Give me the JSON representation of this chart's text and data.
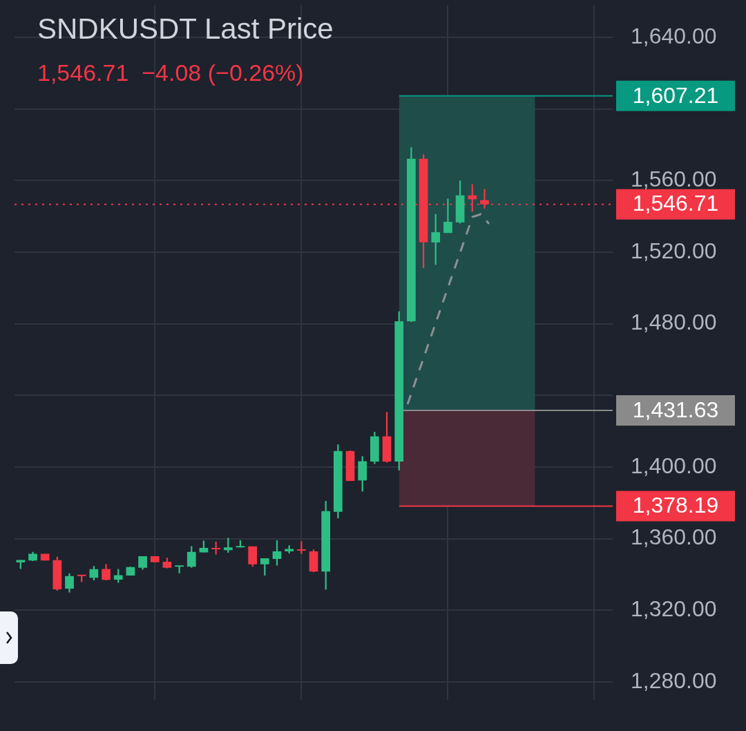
{
  "chart_data": {
    "type": "candlestick",
    "title": "SNDKUSDT Last Price",
    "subtitle": "1,546.71  −4.08 (−0.26%)",
    "categories": [
      null,
      null,
      null,
      null,
      null,
      null,
      null,
      null,
      null,
      null,
      null,
      null,
      null,
      null,
      null,
      null,
      null,
      null,
      null,
      null,
      null,
      null,
      null,
      null,
      null,
      null,
      null,
      null,
      null,
      null,
      null,
      null,
      null,
      null,
      null,
      null,
      null,
      null,
      null,
      null,
      null,
      null,
      null,
      null,
      null,
      null,
      null,
      null,
      null
    ],
    "ohlc": [
      [
        1346.7,
        1348.1,
        1343,
        1348.1
      ],
      [
        1347.8,
        1352.6,
        1347.5,
        1351.5
      ],
      [
        1351.5,
        1351.5,
        1347.8,
        1347.8
      ],
      [
        1348,
        1349.9,
        1330.9,
        1331.7
      ],
      [
        1332,
        1340.6,
        1329.9,
        1339.1
      ],
      [
        1339.8,
        1339.8,
        1335.7,
        1339.1
      ],
      [
        1338.1,
        1344.7,
        1336.7,
        1342.9
      ],
      [
        1343,
        1345.7,
        1336.7,
        1337
      ],
      [
        1337.1,
        1343,
        1335.3,
        1339.6
      ],
      [
        1339.4,
        1344.3,
        1339.4,
        1344.1
      ],
      [
        1343.7,
        1350.2,
        1342.7,
        1350.2
      ],
      [
        1350.2,
        1350.2,
        1346.8,
        1346.8
      ],
      [
        1347.1,
        1349.3,
        1343.4,
        1343.7
      ],
      [
        1344.3,
        1344.9,
        1340.6,
        1344.9
      ],
      [
        1344.3,
        1355.8,
        1343.7,
        1352.6
      ],
      [
        1352.3,
        1358.9,
        1352.3,
        1354.8
      ],
      [
        1354.8,
        1358.3,
        1351.1,
        1354
      ],
      [
        1353.6,
        1360.4,
        1352.1,
        1355.1
      ],
      [
        1355.1,
        1359.1,
        1355.1,
        1355.8
      ],
      [
        1355.7,
        1355.7,
        1344.3,
        1345.6
      ],
      [
        1345.6,
        1349,
        1339.4,
        1349
      ],
      [
        1348.6,
        1359.1,
        1345,
        1352.9
      ],
      [
        1352.9,
        1356.3,
        1351.7,
        1354.2
      ],
      [
        1354,
        1358.5,
        1351.4,
        1353.3
      ],
      [
        1352.9,
        1353.9,
        1341.3,
        1341.6
      ],
      [
        1341.6,
        1381,
        1331.6,
        1375.4
      ],
      [
        1375,
        1412.6,
        1371.3,
        1408.9
      ],
      [
        1408.9,
        1409.2,
        1392.2,
        1392.2
      ],
      [
        1392.5,
        1406,
        1386.3,
        1403.2
      ],
      [
        1403,
        1419.6,
        1401.7,
        1417.1
      ],
      [
        1417.1,
        1430.7,
        1402.4,
        1403
      ],
      [
        1403,
        1486.9,
        1398.1,
        1481.4
      ],
      [
        1481.4,
        1578.5,
        1481,
        1572.1
      ],
      [
        1572.1,
        1574.6,
        1511,
        1525.4
      ],
      [
        1525.4,
        1541.2,
        1512.9,
        1531.1
      ],
      [
        1530.7,
        1549.9,
        1530.7,
        1536.9
      ],
      [
        1536.6,
        1560,
        1536,
        1551.7
      ],
      [
        1551.7,
        1557.9,
        1542.5,
        1549.5
      ],
      [
        1549,
        1555.2,
        1544.3,
        1546.71
      ],
      null,
      null,
      null,
      null,
      null,
      null,
      null,
      null,
      null,
      null
    ],
    "colors": [
      "#2ebd85",
      "#2ebd85",
      "#f23645",
      "#f23645",
      "#2ebd85",
      "#f23645",
      "#2ebd85",
      "#f23645",
      "#2ebd85",
      "#2ebd85",
      "#2ebd85",
      "#f23645",
      "#f23645",
      "#2ebd85",
      "#2ebd85",
      "#2ebd85",
      "#f23645",
      "#2ebd85",
      "#2ebd85",
      "#f23645",
      "#2ebd85",
      "#2ebd85",
      "#2ebd85",
      "#f23645",
      "#f23645",
      "#2ebd85",
      "#2ebd85",
      "#f23645",
      "#2ebd85",
      "#2ebd85",
      "#f23645",
      "#2ebd85",
      "#2ebd85",
      "#f23645",
      "#2ebd85",
      "#2ebd85",
      "#2ebd85",
      "#f23645",
      "#f23645",
      null,
      null,
      null,
      null,
      null,
      null,
      null,
      null,
      null,
      null
    ],
    "ylim": [
      1270,
      1658
    ],
    "yticks": [
      {
        "value": 1280,
        "label": "1,280.00"
      },
      {
        "value": 1320,
        "label": "1,320.00"
      },
      {
        "value": 1360,
        "label": "1,360.00"
      },
      {
        "value": 1400,
        "label": "1,400.00"
      },
      {
        "value": 1440,
        "label": null
      },
      {
        "value": 1480,
        "label": "1,480.00"
      },
      {
        "value": 1520,
        "label": "1,520.00"
      },
      {
        "value": 1560,
        "label": "1,560.00"
      },
      {
        "value": 1600,
        "label": null
      },
      {
        "value": 1640,
        "label": "1,640.00"
      }
    ],
    "bands": [
      {
        "axis": "y",
        "from": 1431.63,
        "to": 1607.21,
        "color": "#1f4d4a"
      },
      {
        "axis": "y",
        "from": 1378.19,
        "to": 1431.63,
        "color": "#4a2a36"
      }
    ],
    "ref_lines": [
      {
        "axis": "y",
        "value": 1546.71,
        "label": "1,546.71",
        "color": "#f23645",
        "line_style": "dotted"
      },
      {
        "axis": "y",
        "value": 1607.21,
        "label": "1,607.21",
        "color": "#089981",
        "line_style": "solid"
      },
      {
        "axis": "y",
        "value": 1431.63,
        "label": "1,431.63",
        "color": "#8a8a8a",
        "line_style": "solid"
      },
      {
        "axis": "y",
        "value": 1378.19,
        "label": "1,378.19",
        "color": "#f23645",
        "line_style": "solid"
      }
    ],
    "grid": true
  }
}
